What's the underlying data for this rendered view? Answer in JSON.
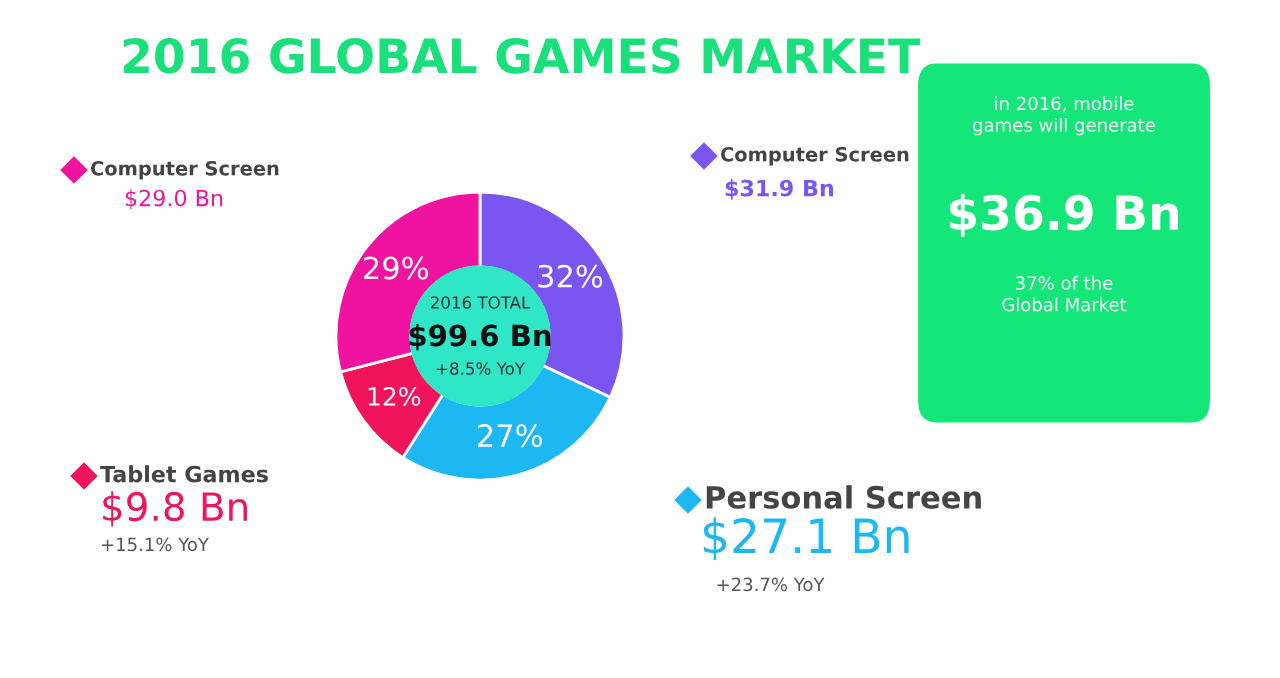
{
  "chart_data": [
    {
      "type": "donut",
      "title": "2016 GLOBAL GAMES MARKET",
      "categories": [
        "Computer Screen",
        "Personal Screen",
        "Tablet Games",
        "Computer Screen"
      ],
      "values": [
        32,
        27,
        12,
        29
      ],
      "colors": [
        "#7b55f0",
        "#1db8f2",
        "#f0145c",
        "#ef13a0"
      ],
      "value_labels": [
        "32%",
        "27%",
        "12%",
        "29%"
      ],
      "legend": "top right",
      "annotations": [
        "2016 TOTAL",
        "$99.6 Bn",
        "+8.5% YoY",
        "$31.9 Bn",
        "$27.1 Bn",
        "+23.7% YoY",
        "$9.8 Bn",
        "+15.1% YoY",
        "$29.0 Bn"
      ]
    },
    {
      "type": "other",
      "annotations": [
        "in 2016, mobile games will generate",
        "$36.9 Bn",
        "37% of the Global Market"
      ]
    }
  ]
}
